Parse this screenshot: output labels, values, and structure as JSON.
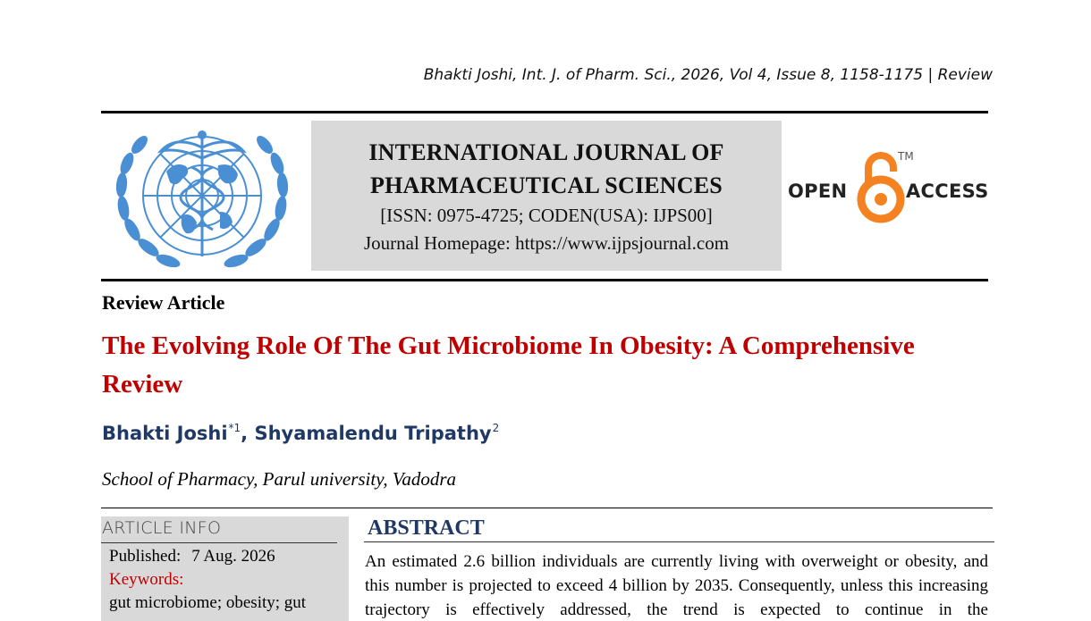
{
  "running_header": "Bhakti Joshi, Int. J. of Pharm. Sci., 2026, Vol 4, Issue 8, 1158-1175 | Review",
  "journal": {
    "title_line1": "INTERNATIONAL JOURNAL OF",
    "title_line2": "PHARMACEUTICAL SCIENCES",
    "issn": "[ISSN: 0975-4725; CODEN(USA): IJPS00]",
    "homepage": "Journal Homepage: https://www.ijpsjournal.com"
  },
  "open_access": {
    "open": "OPEN",
    "access": "ACCESS",
    "tm": "TM",
    "color": "#f58220"
  },
  "article": {
    "type": "Review Article",
    "title": "The Evolving Role Of The Gut Microbiome In Obesity: A Comprehensive Review",
    "authors": [
      {
        "name": "Bhakti Joshi",
        "sup": "*1"
      },
      {
        "name": "Shyamalendu Tripathy",
        "sup": "2"
      }
    ],
    "author_separator": ", ",
    "affiliation": "School of Pharmacy, Parul university, Vadodra"
  },
  "article_info": {
    "heading": "ARTICLE INFO",
    "published_label": "Published:",
    "published_date": "7 Aug. 2026",
    "keywords_label": "Keywords:",
    "keywords": "gut microbiome; obesity; gut"
  },
  "abstract": {
    "heading": "ABSTRACT",
    "text": "An estimated 2.6 billion individuals are currently living with overweight or obesity, and this number is projected to exceed 4 billion by 2035. Consequently, unless this increasing trajectory is effectively addressed, the trend is expected to continue in the"
  },
  "colors": {
    "title_red": "#c00000",
    "author_blue": "#1f3864",
    "box_gray": "#d9d9d9",
    "logo_blue": "#4a8fd4"
  },
  "icons": {
    "journal_logo": "globe-caduceus-emblem-icon",
    "open_access": "open-lock-icon"
  }
}
